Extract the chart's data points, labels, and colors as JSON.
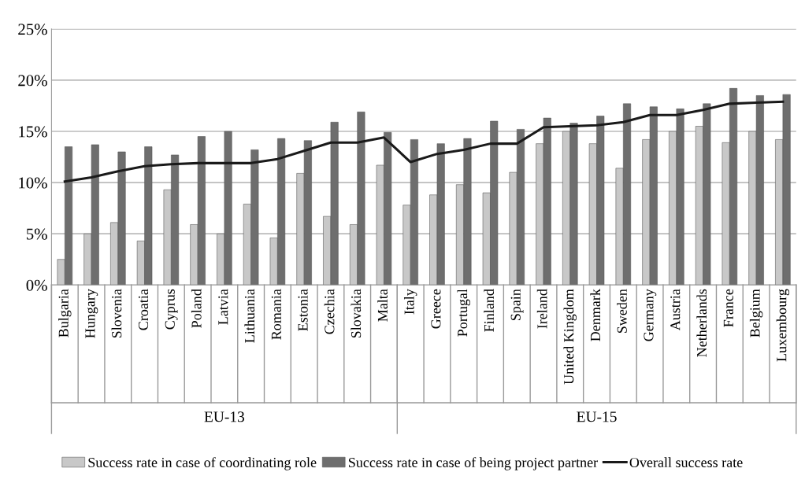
{
  "chart_data": {
    "type": "bar",
    "categories": [
      "Bulgaria",
      "Hungary",
      "Slovenia",
      "Croatia",
      "Cyprus",
      "Poland",
      "Latvia",
      "Lithuania",
      "Romania",
      "Estonia",
      "Czechia",
      "Slovakia",
      "Malta",
      "Italy",
      "Greece",
      "Portugal",
      "Finland",
      "Spain",
      "Ireland",
      "United Kingdom",
      "Denmark",
      "Sweden",
      "Germany",
      "Austria",
      "Netherlands",
      "France",
      "Belgium",
      "Luxembourg"
    ],
    "series": [
      {
        "name": "Success rate in case of coordinating role",
        "color": "#c8c8c8",
        "values": [
          2.5,
          5.0,
          6.1,
          4.3,
          9.3,
          5.9,
          5.0,
          7.9,
          4.6,
          10.9,
          6.7,
          5.9,
          11.7,
          7.8,
          8.8,
          9.8,
          9.0,
          11.0,
          13.8,
          15.0,
          13.8,
          11.4,
          14.2,
          15.0,
          15.5,
          13.9,
          15.0,
          14.2
        ]
      },
      {
        "name": "Success rate in case of being project partner",
        "color": "#6e6e6e",
        "values": [
          13.5,
          13.7,
          13.0,
          13.5,
          12.7,
          14.5,
          15.0,
          13.2,
          14.3,
          14.1,
          15.9,
          16.9,
          14.9,
          14.2,
          13.8,
          14.3,
          16.0,
          15.2,
          16.3,
          15.8,
          16.5,
          17.7,
          17.4,
          17.2,
          17.7,
          19.2,
          18.5,
          18.6
        ]
      },
      {
        "name": "Overall success rate",
        "type": "line",
        "color": "#1a1a1a",
        "values": [
          10.1,
          10.5,
          11.1,
          11.6,
          11.8,
          11.9,
          11.9,
          11.9,
          12.3,
          13.1,
          13.9,
          13.9,
          14.4,
          12.0,
          12.8,
          13.2,
          13.8,
          13.8,
          15.4,
          15.5,
          15.6,
          15.9,
          16.6,
          16.6,
          17.1,
          17.7,
          17.8,
          17.9
        ]
      }
    ],
    "ylim": [
      0,
      25
    ],
    "yticks": [
      {
        "value": 0,
        "label": "0%"
      },
      {
        "value": 5,
        "label": "5%"
      },
      {
        "value": 10,
        "label": "10%"
      },
      {
        "value": 15,
        "label": "15%"
      },
      {
        "value": 20,
        "label": "20%"
      },
      {
        "value": 25,
        "label": "25%"
      }
    ],
    "annotations": [
      "EU-13",
      "EU-15"
    ],
    "grid": "y",
    "legend": "bottom",
    "marker": "none",
    "line_style": "solid"
  }
}
